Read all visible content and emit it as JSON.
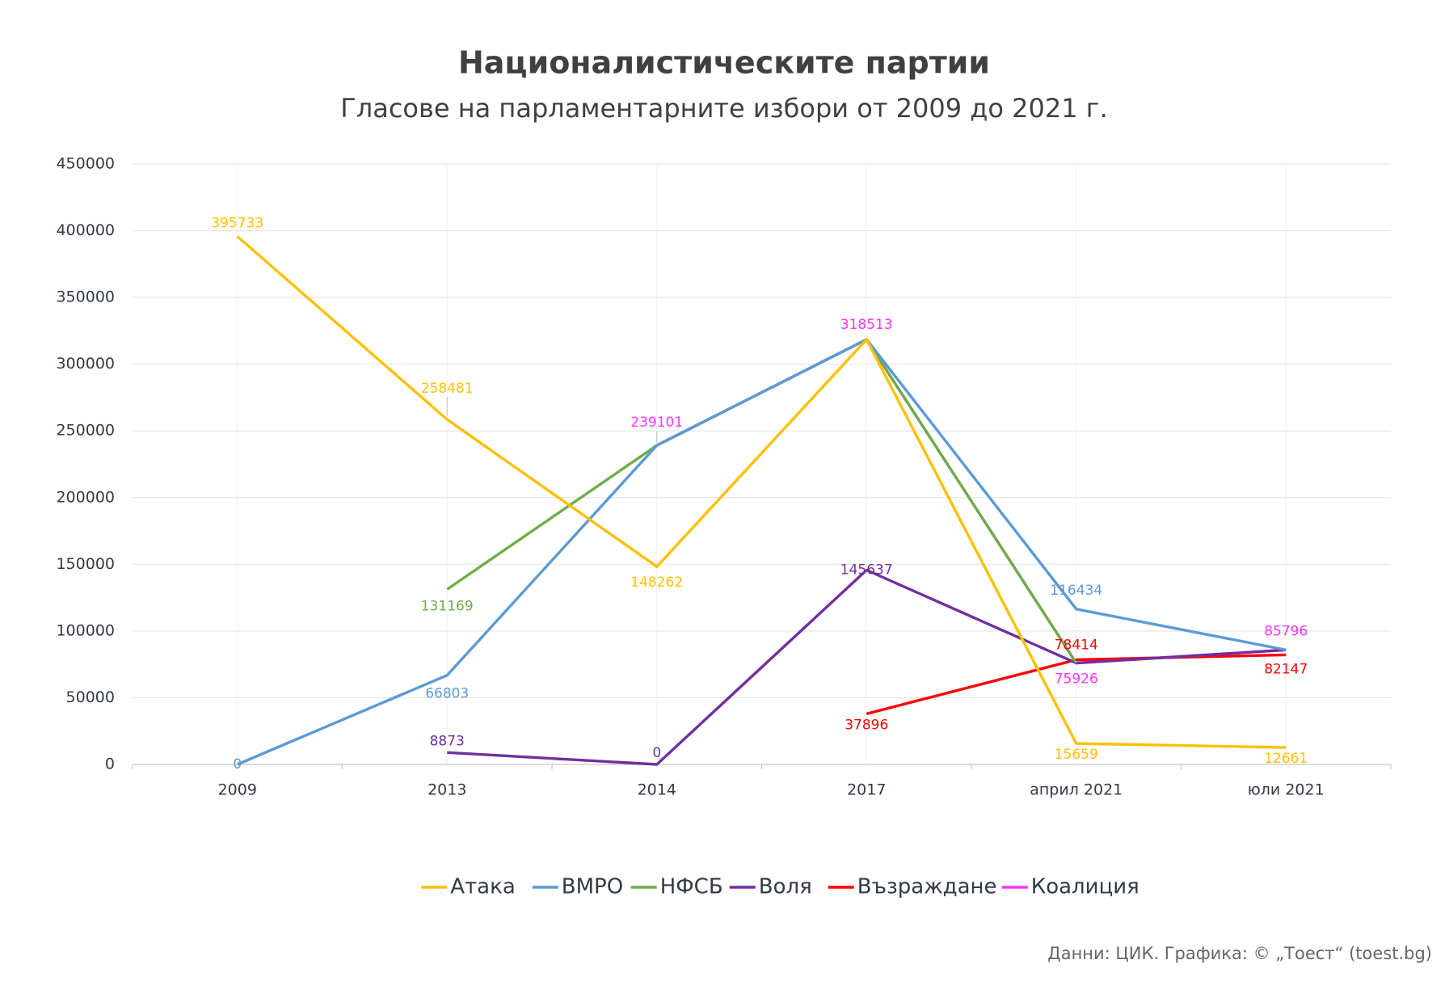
{
  "chart_data": {
    "type": "line",
    "title": "Националистическите партии",
    "subtitle": "Гласове на парламентарните избори от 2009 до 2021 г.",
    "source": "Данни: ЦИК. Графика: © „Тоест“ (toest.bg)",
    "categories": [
      "2009",
      "2013",
      "2014",
      "2017",
      "април 2021",
      "юли 2021"
    ],
    "ylim": [
      0,
      450000
    ],
    "yticks": [
      0,
      50000,
      100000,
      150000,
      200000,
      250000,
      300000,
      350000,
      400000,
      450000
    ],
    "grid": true,
    "legend": "bottom",
    "series": [
      {
        "name": "Атака",
        "color": "#FFC000",
        "values": [
          395733,
          258481,
          148262,
          318513,
          15659,
          12661
        ],
        "show_labels": [
          true,
          true,
          true,
          false,
          true,
          true
        ]
      },
      {
        "name": "ВМРО",
        "color": "#5B9BD5",
        "values": [
          0,
          66803,
          239101,
          318513,
          116434,
          85796
        ],
        "show_labels": [
          true,
          true,
          false,
          false,
          true,
          false
        ]
      },
      {
        "name": "НФСБ",
        "color": "#70AD47",
        "values": [
          null,
          131169,
          239101,
          318513,
          75926,
          null
        ],
        "show_labels": [
          false,
          true,
          false,
          false,
          false,
          false
        ]
      },
      {
        "name": "Воля",
        "color": "#7030A0",
        "values": [
          null,
          8873,
          0,
          145637,
          75926,
          85796
        ],
        "show_labels": [
          false,
          true,
          true,
          true,
          false,
          false
        ]
      },
      {
        "name": "Възраждане",
        "color": "#FF0000",
        "values": [
          null,
          null,
          null,
          37896,
          78414,
          82147
        ],
        "show_labels": [
          false,
          false,
          false,
          true,
          true,
          true
        ]
      },
      {
        "name": "Коалиция",
        "color": "#FF33FF",
        "values": [
          null,
          null,
          239101,
          318513,
          75926,
          85796
        ],
        "show_labels": [
          false,
          false,
          true,
          true,
          true,
          true
        ]
      }
    ]
  }
}
